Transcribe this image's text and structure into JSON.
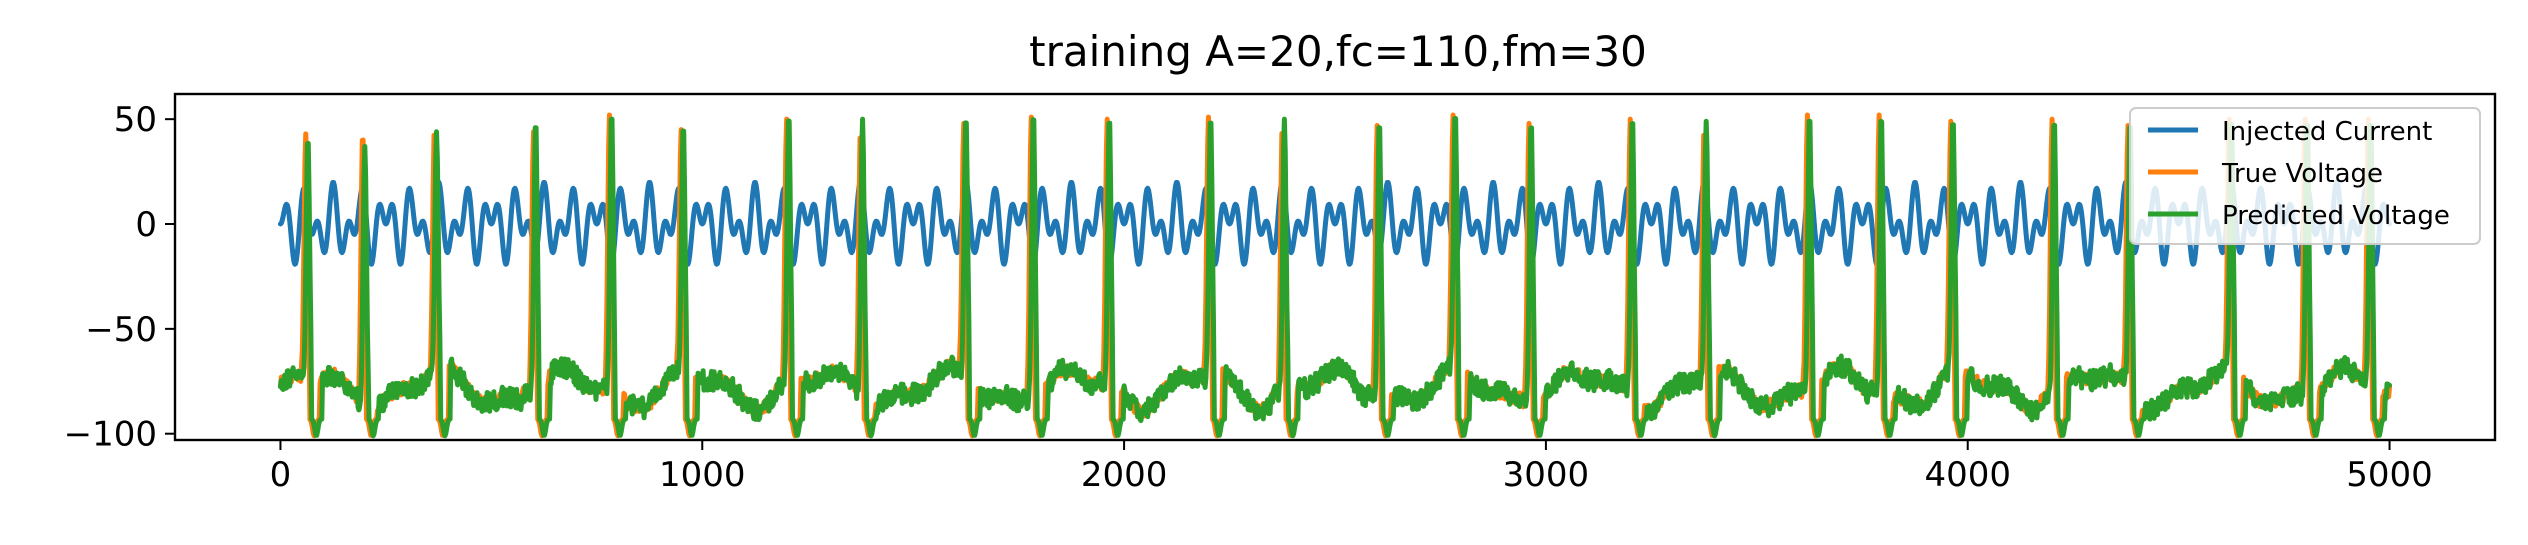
{
  "chart_data": {
    "type": "line",
    "title": "training A=20,fc=110,fm=30",
    "xlabel": "",
    "ylabel": "",
    "xlim": [
      -250,
      5250
    ],
    "ylim": [
      -103,
      62
    ],
    "xticks": [
      0,
      1000,
      2000,
      3000,
      4000,
      5000
    ],
    "xtick_labels": [
      "0",
      "1000",
      "2000",
      "3000",
      "4000",
      "5000"
    ],
    "yticks": [
      -100,
      -50,
      0,
      50
    ],
    "ytick_labels": [
      "−100",
      "−50",
      "0",
      "50"
    ],
    "grid": false,
    "legend_position": "top-right",
    "series": [
      {
        "name": "Injected Current",
        "color": "#1f77b4",
        "model": "A*sin(2*pi*fc*t)*sin(2*pi*fm*t)",
        "A": 20,
        "fc": 110,
        "fm": 30,
        "x_range": [
          0,
          5000
        ]
      },
      {
        "name": "True Voltage",
        "color": "#ff7f0e",
        "x_range": [
          0,
          5000
        ],
        "resting_range": [
          -95,
          -62
        ],
        "spike_peaks": [
          [
            60,
            43
          ],
          [
            195,
            44
          ],
          [
            365,
            46
          ],
          [
            600,
            44
          ],
          [
            780,
            52
          ],
          [
            950,
            45
          ],
          [
            1200,
            50
          ],
          [
            1375,
            45
          ],
          [
            1620,
            48
          ],
          [
            1780,
            51
          ],
          [
            1960,
            50
          ],
          [
            2200,
            51
          ],
          [
            2375,
            47
          ],
          [
            2600,
            47
          ],
          [
            2780,
            52
          ],
          [
            2960,
            48
          ],
          [
            3200,
            50
          ],
          [
            3375,
            46
          ],
          [
            3620,
            52
          ],
          [
            3790,
            52
          ],
          [
            3960,
            49
          ],
          [
            4200,
            50
          ],
          [
            4380,
            47
          ],
          [
            4620,
            50
          ],
          [
            4800,
            50
          ],
          [
            4950,
            50
          ]
        ]
      },
      {
        "name": "Predicted Voltage",
        "color": "#2ca02c",
        "x_range": [
          0,
          5000
        ],
        "resting_range": [
          -95,
          -62
        ],
        "spike_peaks": [
          [
            65,
            42
          ],
          [
            200,
            37
          ],
          [
            370,
            44
          ],
          [
            605,
            50
          ],
          [
            785,
            54
          ],
          [
            955,
            48
          ],
          [
            1205,
            53
          ],
          [
            1380,
            50
          ],
          [
            1625,
            52
          ],
          [
            1785,
            54
          ],
          [
            1965,
            52
          ],
          [
            2205,
            52
          ],
          [
            2380,
            50
          ],
          [
            2605,
            50
          ],
          [
            2785,
            54
          ],
          [
            2965,
            50
          ],
          [
            3205,
            52
          ],
          [
            3380,
            49
          ],
          [
            3625,
            53
          ],
          [
            3795,
            53
          ],
          [
            3965,
            51
          ],
          [
            4205,
            51
          ],
          [
            4385,
            50
          ],
          [
            4625,
            51
          ],
          [
            4805,
            51
          ],
          [
            4955,
            51
          ]
        ]
      }
    ]
  }
}
